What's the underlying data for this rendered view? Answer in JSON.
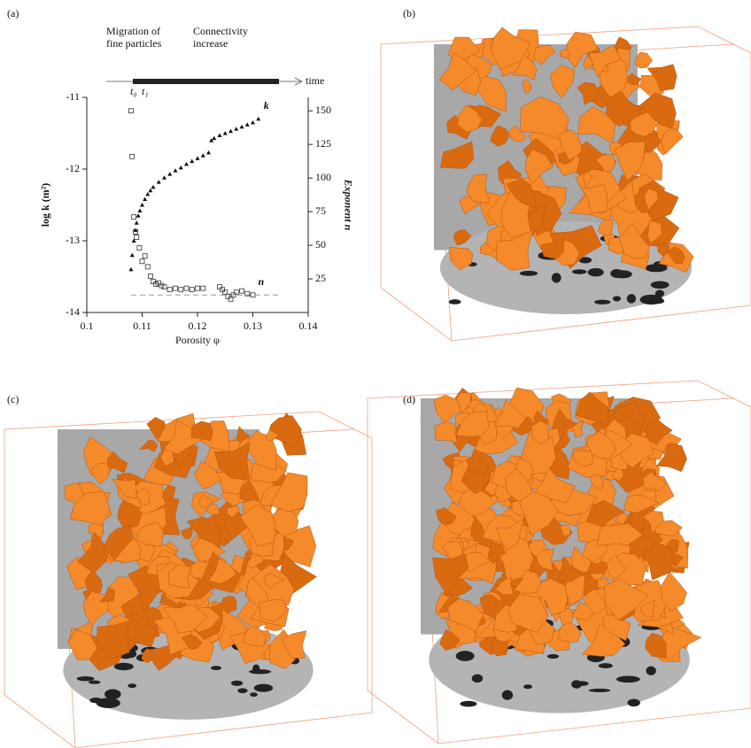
{
  "panel_labels": [
    "(a)",
    "(b)",
    "(c)",
    "(d)"
  ],
  "chart_data": {
    "type": "scatter",
    "xlabel": "Porosity φ",
    "ylabel": "log k (m²)",
    "y2label": "Exponent n",
    "xlim": [
      0.1,
      0.14
    ],
    "xticks": [
      0.1,
      0.11,
      0.12,
      0.13,
      0.14
    ],
    "ylim": [
      -14,
      -11
    ],
    "yticks": [
      -14,
      -13,
      -12,
      -11
    ],
    "y2lim": [
      0,
      160
    ],
    "y2ticks": [
      25,
      50,
      75,
      100,
      125,
      150
    ],
    "timeline": {
      "phase1": [
        "Migration of",
        "fine particles"
      ],
      "phase2": [
        "Connectivity",
        "increase"
      ],
      "arrow_label": "time",
      "t0": "t₀",
      "t1": "t₁"
    },
    "n_reference": 13,
    "series": [
      {
        "name": "k",
        "marker": "triangle",
        "color": "#111111",
        "x": [
          0.108,
          0.1082,
          0.1085,
          0.1088,
          0.109,
          0.1093,
          0.1096,
          0.11,
          0.1105,
          0.111,
          0.1115,
          0.112,
          0.113,
          0.114,
          0.115,
          0.116,
          0.117,
          0.118,
          0.119,
          0.12,
          0.121,
          0.122,
          0.1225,
          0.123,
          0.124,
          0.125,
          0.126,
          0.127,
          0.128,
          0.129,
          0.13,
          0.131
        ],
        "values": [
          -13.4,
          -13.2,
          -13.0,
          -12.85,
          -12.75,
          -12.65,
          -12.58,
          -12.5,
          -12.42,
          -12.35,
          -12.3,
          -12.25,
          -12.18,
          -12.12,
          -12.07,
          -12.02,
          -11.98,
          -11.93,
          -11.89,
          -11.85,
          -11.81,
          -11.77,
          -11.6,
          -11.57,
          -11.53,
          -11.5,
          -11.47,
          -11.44,
          -11.41,
          -11.38,
          -11.35,
          -11.3
        ]
      },
      {
        "name": "n",
        "marker": "square",
        "color": "#333333",
        "axis": "y2",
        "x": [
          0.108,
          0.1082,
          0.1085,
          0.1088,
          0.109,
          0.1095,
          0.11,
          0.1105,
          0.111,
          0.1115,
          0.112,
          0.1125,
          0.113,
          0.1135,
          0.114,
          0.115,
          0.116,
          0.117,
          0.118,
          0.119,
          0.12,
          0.121,
          0.124,
          0.1245,
          0.125,
          0.1255,
          0.126,
          0.1265,
          0.127,
          0.128,
          0.129,
          0.13
        ],
        "values": [
          150,
          116,
          71,
          60,
          56,
          48,
          38,
          42,
          34,
          27,
          23,
          21,
          22,
          20,
          19,
          17,
          18,
          17,
          18,
          17,
          18,
          18,
          19,
          17,
          15,
          12,
          10,
          13,
          15,
          16,
          14,
          13
        ]
      }
    ]
  }
}
